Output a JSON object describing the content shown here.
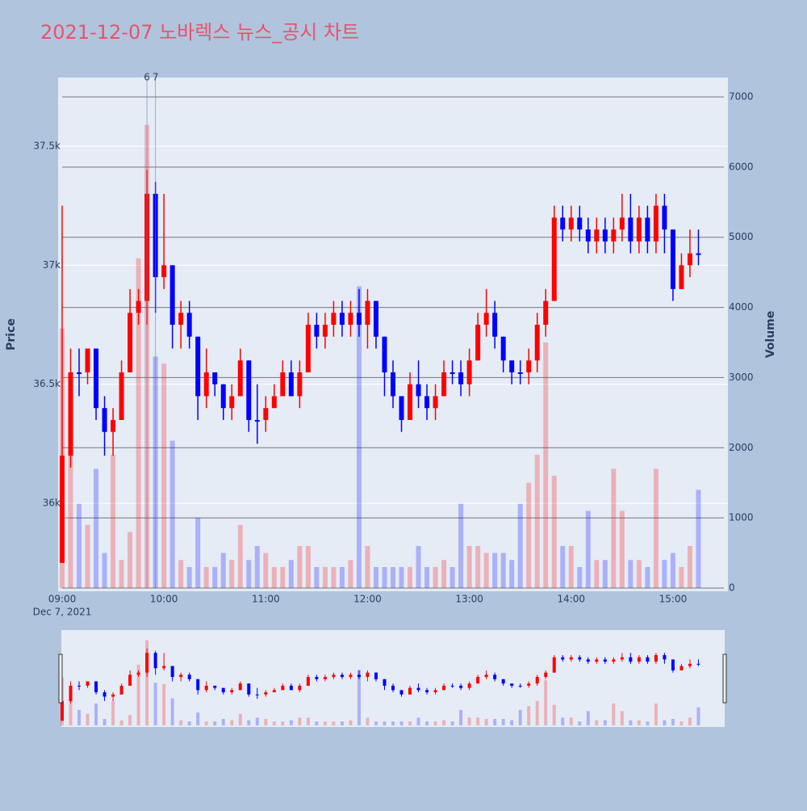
{
  "chart_data": {
    "type": "candlestick",
    "title": "2021-12-07 노바렉스 뉴스_공시 차트",
    "y_label": "Price",
    "y2_label": "Volume",
    "increasing_color": "#ff0000",
    "decreasing_color": "#0000ff",
    "xlim": [
      "09:00",
      "15:30"
    ],
    "xticks": [
      "09:00",
      "10:00",
      "11:00",
      "12:00",
      "13:00",
      "14:00",
      "15:00"
    ],
    "x_date": "Dec 7, 2021",
    "ylim": [
      35644,
      37785
    ],
    "yticks": [
      {
        "value": 36000,
        "label": "36k"
      },
      {
        "value": 36500,
        "label": "36.5k"
      },
      {
        "value": 37000,
        "label": "37k"
      },
      {
        "value": 37500,
        "label": "37.5k"
      }
    ],
    "y2lim": [
      0,
      7265
    ],
    "y2ticks": [
      0,
      1000,
      2000,
      3000,
      4000,
      5000,
      6000,
      7000
    ],
    "annotations": [
      {
        "text": "6",
        "x": "09:50"
      },
      {
        "text": "7",
        "x": "09:55"
      }
    ],
    "x": [
      "09:00",
      "09:05",
      "09:10",
      "09:15",
      "09:20",
      "09:25",
      "09:30",
      "09:35",
      "09:40",
      "09:45",
      "09:50",
      "09:55",
      "10:00",
      "10:05",
      "10:10",
      "10:15",
      "10:20",
      "10:25",
      "10:30",
      "10:35",
      "10:40",
      "10:45",
      "10:50",
      "10:55",
      "11:00",
      "11:05",
      "11:10",
      "11:15",
      "11:20",
      "11:25",
      "11:30",
      "11:35",
      "11:40",
      "11:45",
      "11:50",
      "11:55",
      "12:00",
      "12:05",
      "12:10",
      "12:15",
      "12:20",
      "12:25",
      "12:30",
      "12:35",
      "12:40",
      "12:45",
      "12:50",
      "12:55",
      "13:00",
      "13:05",
      "13:10",
      "13:15",
      "13:20",
      "13:25",
      "13:30",
      "13:35",
      "13:40",
      "13:45",
      "13:50",
      "13:55",
      "14:00",
      "14:05",
      "14:10",
      "14:15",
      "14:20",
      "14:25",
      "14:30",
      "14:35",
      "14:40",
      "14:45",
      "14:50",
      "14:55",
      "15:00",
      "15:05",
      "15:10",
      "15:15"
    ],
    "open": [
      35750,
      36200,
      36550,
      36550,
      36650,
      36400,
      36300,
      36350,
      36550,
      36800,
      36850,
      37300,
      36950,
      37000,
      36750,
      36800,
      36700,
      36450,
      36550,
      36500,
      36400,
      36450,
      36600,
      36350,
      36350,
      36400,
      36450,
      36550,
      36450,
      36550,
      36750,
      36700,
      36750,
      36800,
      36750,
      36800,
      36750,
      36850,
      36700,
      36550,
      36450,
      36350,
      36500,
      36450,
      36400,
      36450,
      36550,
      36550,
      36500,
      36600,
      36750,
      36800,
      36700,
      36600,
      36550,
      36550,
      36600,
      36750,
      36850,
      37200,
      37150,
      37200,
      37150,
      37100,
      37150,
      37100,
      37150,
      37200,
      37100,
      37200,
      37100,
      37250,
      37150,
      36900,
      37000,
      37050
    ],
    "high": [
      37250,
      36650,
      36650,
      36650,
      36650,
      36450,
      36400,
      36600,
      36900,
      36900,
      37400,
      37350,
      37300,
      37000,
      36850,
      36850,
      36700,
      36650,
      36550,
      36500,
      36500,
      36650,
      36600,
      36500,
      36450,
      36500,
      36600,
      36600,
      36600,
      36800,
      36800,
      36800,
      36850,
      36850,
      36850,
      36900,
      36900,
      36850,
      36700,
      36600,
      36450,
      36550,
      36600,
      36500,
      36500,
      36600,
      36600,
      36600,
      36650,
      36800,
      36900,
      36850,
      36700,
      36600,
      36600,
      36650,
      36800,
      36900,
      37250,
      37250,
      37250,
      37250,
      37200,
      37200,
      37200,
      37200,
      37300,
      37300,
      37250,
      37250,
      37300,
      37300,
      37150,
      37050,
      37150,
      37150
    ],
    "low": [
      35750,
      36150,
      36450,
      36500,
      36350,
      36200,
      36200,
      36350,
      36550,
      36750,
      36750,
      36800,
      36900,
      36650,
      36650,
      36650,
      36350,
      36400,
      36450,
      36350,
      36350,
      36450,
      36300,
      36250,
      36300,
      36400,
      36450,
      36450,
      36400,
      36550,
      36650,
      36650,
      36700,
      36700,
      36700,
      36700,
      36650,
      36650,
      36450,
      36400,
      36300,
      36350,
      36400,
      36350,
      36350,
      36450,
      36500,
      36450,
      36450,
      36600,
      36700,
      36650,
      36550,
      36500,
      36500,
      36500,
      36550,
      36700,
      36850,
      37100,
      37100,
      37100,
      37050,
      37050,
      37050,
      37050,
      37100,
      37050,
      37050,
      37050,
      37050,
      37050,
      36850,
      36900,
      36950,
      37000
    ],
    "close": [
      36200,
      36550,
      36550,
      36650,
      36400,
      36300,
      36350,
      36550,
      36800,
      36850,
      37300,
      36950,
      37000,
      36750,
      36800,
      36700,
      36450,
      36550,
      36500,
      36400,
      36450,
      36600,
      36350,
      36350,
      36400,
      36450,
      36550,
      36450,
      36550,
      36750,
      36700,
      36750,
      36800,
      36750,
      36800,
      36750,
      36850,
      36700,
      36550,
      36450,
      36350,
      36500,
      36450,
      36400,
      36450,
      36550,
      36550,
      36500,
      36600,
      36750,
      36800,
      36700,
      36600,
      36550,
      36550,
      36600,
      36750,
      36850,
      37200,
      37150,
      37200,
      37150,
      37100,
      37150,
      37100,
      37150,
      37200,
      37100,
      37200,
      37100,
      37250,
      37150,
      36900,
      37000,
      37050,
      37050
    ],
    "volume": [
      3700,
      2500,
      1200,
      900,
      1700,
      500,
      1900,
      400,
      800,
      4700,
      6600,
      3300,
      3200,
      2100,
      400,
      300,
      1000,
      300,
      300,
      500,
      400,
      900,
      400,
      600,
      500,
      300,
      300,
      400,
      600,
      600,
      300,
      300,
      300,
      300,
      400,
      4300,
      600,
      300,
      300,
      300,
      300,
      300,
      600,
      300,
      300,
      400,
      300,
      1200,
      600,
      600,
      500,
      500,
      500,
      400,
      1200,
      1500,
      1900,
      3500,
      1600,
      600,
      600,
      300,
      1100,
      400,
      400,
      1700,
      1100,
      400,
      400,
      300,
      1700,
      400,
      500,
      300,
      600,
      1400
    ]
  }
}
